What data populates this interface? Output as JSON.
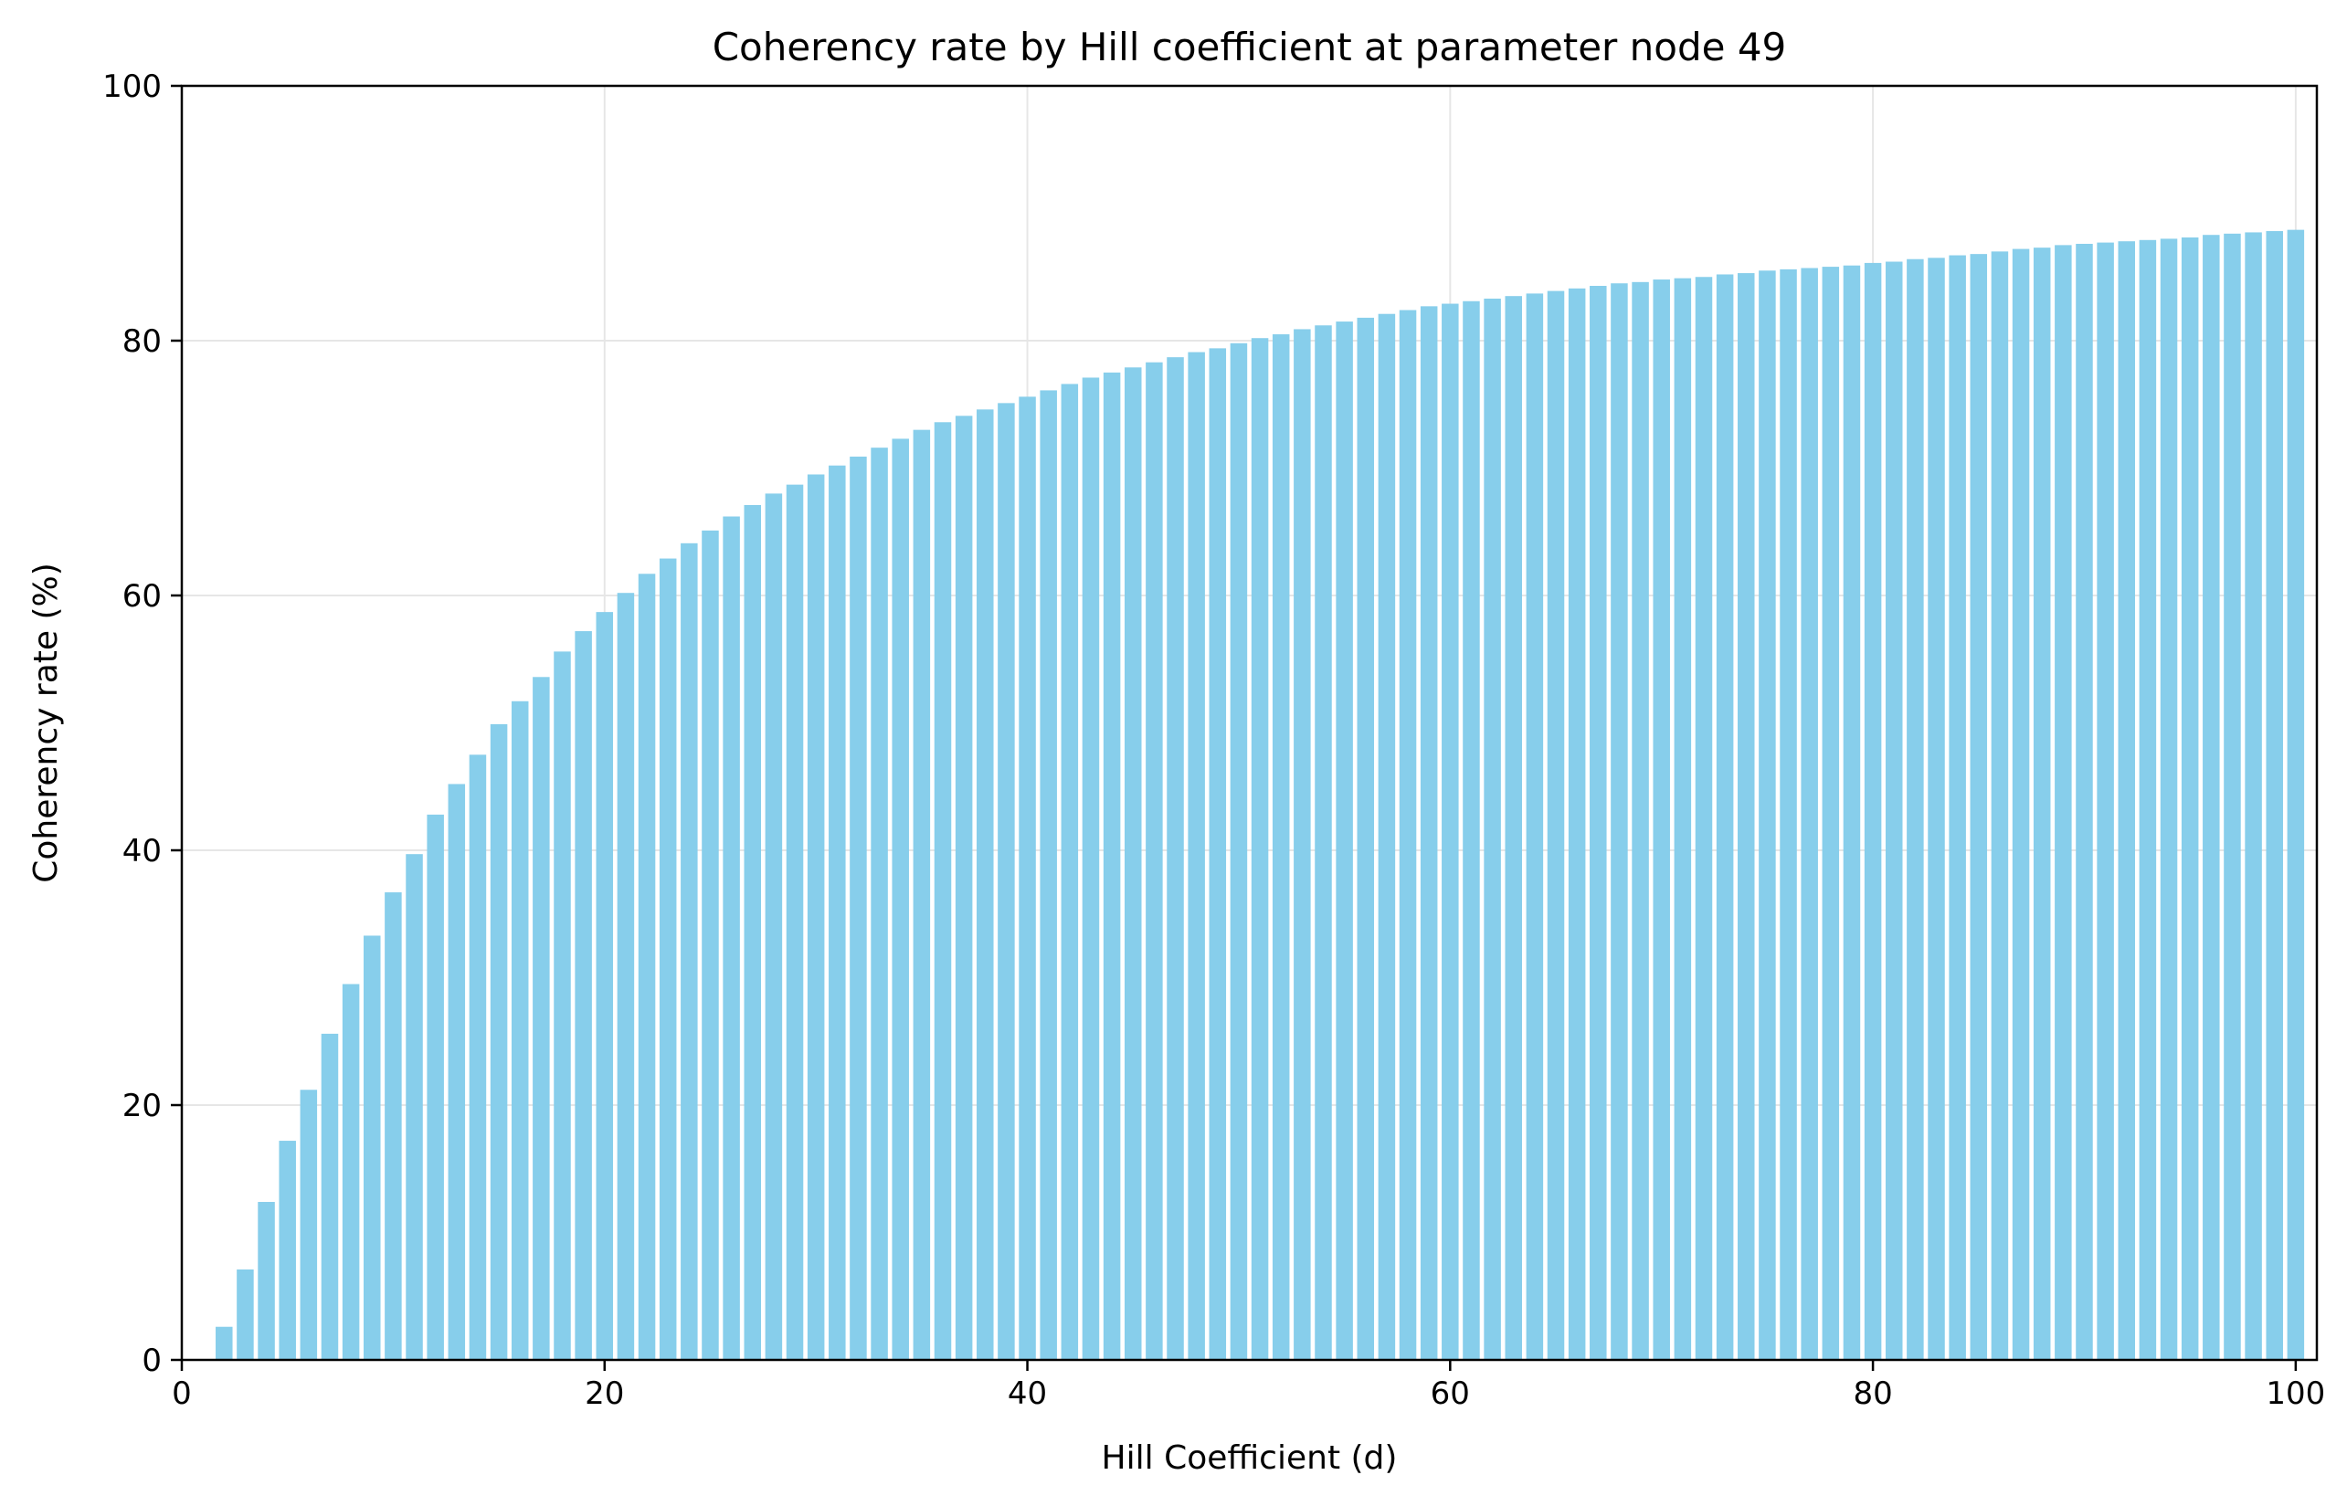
{
  "chart_data": {
    "type": "bar",
    "title": "Coherency rate by Hill coefficient at parameter node 49",
    "xlabel": "Hill Coefficient (d)",
    "ylabel": "Coherency rate (%)",
    "xlim": [
      0,
      101
    ],
    "ylim": [
      0,
      100
    ],
    "xticks": [
      "0",
      "20",
      "40",
      "60",
      "80",
      "100"
    ],
    "yticks": [
      "0",
      "20",
      "40",
      "60",
      "80",
      "100"
    ],
    "grid": true,
    "bar_color": "#87CEEB",
    "grid_color": "#e6e6e6",
    "x": [
      2,
      3,
      4,
      5,
      6,
      7,
      8,
      9,
      10,
      11,
      12,
      13,
      14,
      15,
      16,
      17,
      18,
      19,
      20,
      21,
      22,
      23,
      24,
      25,
      26,
      27,
      28,
      29,
      30,
      31,
      32,
      33,
      34,
      35,
      36,
      37,
      38,
      39,
      40,
      41,
      42,
      43,
      44,
      45,
      46,
      47,
      48,
      49,
      50,
      51,
      52,
      53,
      54,
      55,
      56,
      57,
      58,
      59,
      60,
      61,
      62,
      63,
      64,
      65,
      66,
      67,
      68,
      69,
      70,
      71,
      72,
      73,
      74,
      75,
      76,
      77,
      78,
      79,
      80,
      81,
      82,
      83,
      84,
      85,
      86,
      87,
      88,
      89,
      90,
      91,
      92,
      93,
      94,
      95,
      96,
      97,
      98,
      99,
      100
    ],
    "values": [
      2.6,
      7.1,
      12.4,
      17.2,
      21.2,
      25.6,
      29.5,
      33.3,
      36.7,
      39.7,
      42.8,
      45.2,
      47.5,
      49.9,
      51.7,
      53.6,
      55.6,
      57.2,
      58.7,
      60.2,
      61.7,
      62.9,
      64.1,
      65.1,
      66.2,
      67.1,
      68.0,
      68.7,
      69.5,
      70.2,
      70.9,
      71.6,
      72.3,
      73.0,
      73.6,
      74.1,
      74.6,
      75.1,
      75.6,
      76.1,
      76.6,
      77.1,
      77.5,
      77.9,
      78.3,
      78.7,
      79.1,
      79.4,
      79.8,
      80.2,
      80.5,
      80.9,
      81.2,
      81.5,
      81.8,
      82.1,
      82.4,
      82.7,
      82.9,
      83.1,
      83.3,
      83.5,
      83.7,
      83.9,
      84.1,
      84.3,
      84.5,
      84.6,
      84.8,
      84.9,
      85.0,
      85.2,
      85.3,
      85.5,
      85.6,
      85.7,
      85.8,
      85.9,
      86.1,
      86.2,
      86.4,
      86.5,
      86.7,
      86.8,
      87.0,
      87.2,
      87.3,
      87.5,
      87.6,
      87.7,
      87.8,
      87.9,
      88.0,
      88.1,
      88.3,
      88.4,
      88.5,
      88.6,
      88.7
    ]
  }
}
